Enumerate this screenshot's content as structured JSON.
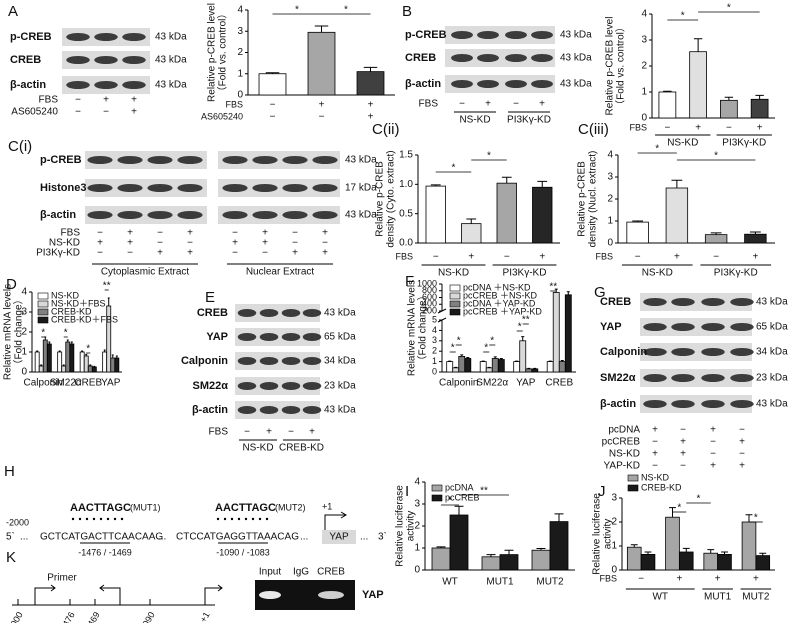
{
  "panel_labels": [
    "A",
    "B",
    "C(i)",
    "C(ii)",
    "C(iii)",
    "D",
    "E",
    "F",
    "G",
    "H",
    "I",
    "J",
    "K"
  ],
  "blots": [
    {
      "rows": [
        {
          "label": "p-CREB",
          "size": "43 kDa"
        },
        {
          "label": "CREB",
          "size": "43 kDa"
        },
        {
          "label": "β-actin",
          "size": "43 kDa"
        }
      ],
      "conditions": [
        {
          "label": "FBS",
          "values": [
            "−",
            "+",
            "+"
          ]
        },
        {
          "label": "AS605240",
          "values": [
            "−",
            "−",
            "+"
          ]
        }
      ],
      "groups": []
    },
    {
      "rows": [
        {
          "label": "p-CREB",
          "size": "43 kDa"
        },
        {
          "label": "CREB",
          "size": "43 kDa"
        },
        {
          "label": "β-actin",
          "size": "43 kDa"
        }
      ],
      "conditions": [
        {
          "label": "FBS",
          "values": [
            "−",
            "+",
            "−",
            "+"
          ]
        }
      ],
      "groups": [
        "NS-KD",
        "PI3Kγ-KD"
      ]
    },
    {
      "rows": [
        {
          "label": "p-CREB",
          "size": "43 kDa"
        },
        {
          "label": "Histone3",
          "size": "17 kDa"
        },
        {
          "label": "β-actin",
          "size": "43 kDa"
        }
      ],
      "conditions": [
        {
          "label": "FBS",
          "values": [
            "−",
            "+",
            "−",
            "+",
            "−",
            "+",
            "−",
            "+"
          ]
        },
        {
          "label": "NS-KD",
          "values": [
            "+",
            "+",
            "−",
            "−",
            "+",
            "+",
            "−",
            "−"
          ]
        },
        {
          "label": "PI3Kγ-KD",
          "values": [
            "−",
            "−",
            "+",
            "+",
            "−",
            "−",
            "+",
            "+"
          ]
        }
      ],
      "groups": [
        "Cytoplasmic  Extract",
        "Nuclear  Extract"
      ]
    },
    {
      "rows": [
        {
          "label": "CREB",
          "size": "43 kDa"
        },
        {
          "label": "YAP",
          "size": "65 kDa"
        },
        {
          "label": "Calponin",
          "size": "34 kDa"
        },
        {
          "label": "SM22α",
          "size": "23 kDa"
        },
        {
          "label": "β-actin",
          "size": "43 kDa"
        }
      ],
      "conditions": [
        {
          "label": "FBS",
          "values": [
            "−",
            "+",
            "−",
            "+"
          ]
        }
      ],
      "groups": [
        "NS-KD",
        "CREB-KD"
      ]
    },
    {
      "rows": [
        {
          "label": "CREB",
          "size": "43 kDa"
        },
        {
          "label": "YAP",
          "size": "65 kDa"
        },
        {
          "label": "Calponin",
          "size": "34 kDa"
        },
        {
          "label": "SM22α",
          "size": "23 kDa"
        },
        {
          "label": "β-actin",
          "size": "43 kDa"
        }
      ],
      "conditions": [
        {
          "label": "pcDNA",
          "values": [
            "+",
            "−",
            "+",
            "−"
          ]
        },
        {
          "label": "pcCREB",
          "values": [
            "−",
            "+",
            "−",
            "+"
          ]
        },
        {
          "label": "NS-KD",
          "values": [
            "+",
            "+",
            "−",
            "−"
          ]
        },
        {
          "label": "YAP-KD",
          "values": [
            "−",
            "−",
            "+",
            "+"
          ]
        }
      ],
      "groups": []
    }
  ],
  "promoter": {
    "start": "-2000",
    "ends": [
      "5`",
      "3`"
    ],
    "gap": "...",
    "seq1": "GCTCATGACTTCAACAAG",
    "seq2": "CTCCATGAGGTTAAACAG",
    "gene": "YAP",
    "mut1_seq": "AACTTAGC",
    "mut1": "(MUT1)",
    "mut2_seq": "AACTTAGC",
    "mut2": "(MUT2)",
    "pos1": "-1476 / -1469",
    "pos2": "-1090 / -1083",
    "tss": "+1"
  },
  "chip": {
    "primer": "Primer",
    "positions": [
      "-2000",
      "-1476",
      "-1469",
      "-1090",
      "+1"
    ],
    "lanes": [
      "Input",
      "IgG",
      "CREB"
    ],
    "target": "YAP"
  },
  "chart_data": [
    {
      "type": "bar",
      "ylabel": [
        "Relative p-CREB level",
        "（Fold vs. control）"
      ],
      "values": [
        1.0,
        2.95,
        1.1
      ],
      "errors": [
        0.05,
        0.3,
        0.2
      ],
      "colors": [
        "#ffffff",
        "#a6a6a6",
        "#404040"
      ],
      "ylim": [
        0,
        4
      ],
      "yticks": [
        0,
        1,
        2,
        3,
        4
      ],
      "xrows": [
        {
          "label": "FBS",
          "values": [
            "−",
            "+",
            "+"
          ]
        },
        {
          "label": "AS605240",
          "values": [
            "−",
            "−",
            "+"
          ]
        }
      ],
      "annotations": [
        "*",
        "*"
      ]
    },
    {
      "type": "bar",
      "ylabel": [
        "Relative p-CREB level",
        "（Fold vs. control）"
      ],
      "values": [
        1.0,
        2.55,
        0.68,
        0.72
      ],
      "errors": [
        0.03,
        0.5,
        0.12,
        0.15
      ],
      "colors": [
        "#ffffff",
        "#e0e0e0",
        "#a6a6a6",
        "#404040"
      ],
      "ylim": [
        0,
        4
      ],
      "yticks": [
        0,
        1,
        2,
        3,
        4
      ],
      "xrows": [
        {
          "label": "FBS",
          "values": [
            "−",
            "+",
            "−",
            "+"
          ]
        }
      ],
      "groups": [
        "NS-KD",
        "PI3Kγ-KD"
      ],
      "annotations": [
        "*",
        "*"
      ]
    },
    {
      "type": "bar",
      "ylabel": [
        "Relative p-CREB",
        "density (Cyto. extract)"
      ],
      "values": [
        0.97,
        0.33,
        1.02,
        0.95
      ],
      "errors": [
        0.02,
        0.08,
        0.1,
        0.1
      ],
      "colors": [
        "#ffffff",
        "#e0e0e0",
        "#a6a6a6",
        "#262626"
      ],
      "ylim": [
        0,
        1.5
      ],
      "yticks": [
        {
          "value": 0,
          "label": "0.0"
        },
        0.5,
        {
          "value": 1,
          "label": "1.0"
        },
        1.5
      ],
      "xrows": [
        {
          "label": "FBS",
          "values": [
            "−",
            "+",
            "−",
            "+"
          ]
        }
      ],
      "groups": [
        "NS-KD",
        "PI3Kγ-KD"
      ],
      "annotations": [
        "*",
        "*"
      ]
    },
    {
      "type": "bar",
      "ylabel": [
        "Relative p-CREB",
        "density (Nucl. extract)"
      ],
      "values": [
        0.95,
        2.5,
        0.38,
        0.4
      ],
      "errors": [
        0.05,
        0.35,
        0.08,
        0.1
      ],
      "colors": [
        "#ffffff",
        "#e0e0e0",
        "#a6a6a6",
        "#262626"
      ],
      "ylim": [
        0,
        4
      ],
      "yticks": [
        0,
        1,
        2,
        3,
        4
      ],
      "xrows": [
        {
          "label": "FBS",
          "values": [
            "−",
            "+",
            "−",
            "+"
          ]
        }
      ],
      "groups": [
        "NS-KD",
        "PI3Kγ-KD"
      ],
      "annotations": [
        "*",
        "*"
      ]
    },
    {
      "type": "bar",
      "ylabel": [
        "Relative mRNA levels",
        "（Fold change）"
      ],
      "categories": [
        "Calponin",
        "SM22α",
        "CREB",
        "YAP"
      ],
      "ylim": [
        0,
        4
      ],
      "yticks": [
        0,
        1,
        2,
        3,
        4
      ],
      "series": [
        {
          "name": "NS-KD",
          "color": "#ffffff",
          "values": [
            1.0,
            1.0,
            1.0,
            1.0
          ],
          "errors": [
            0.05,
            0.05,
            0.05,
            0.1
          ]
        },
        {
          "name": "NS-KD＋FBS",
          "color": "#d9d9d9",
          "values": [
            0.3,
            0.3,
            0.8,
            3.3
          ],
          "errors": [
            0.05,
            0.05,
            0.08,
            0.4
          ]
        },
        {
          "name": "CREB-KD",
          "color": "#808080",
          "values": [
            1.6,
            1.5,
            0.3,
            0.7
          ],
          "errors": [
            0.15,
            0.1,
            0.05,
            0.15
          ]
        },
        {
          "name": "CREB-KD＋FBS",
          "color": "#1a1a1a",
          "values": [
            1.4,
            1.4,
            0.25,
            0.7
          ],
          "errors": [
            0.1,
            0.1,
            0.03,
            0.1
          ]
        }
      ],
      "annotations": [
        "*",
        "*",
        "*",
        "**"
      ]
    },
    {
      "type": "bar",
      "ylabel": [
        "Relative mRNA levels",
        "（Fold change）"
      ],
      "categories": [
        "Calponin",
        "SM22α",
        "YAP",
        "CREB"
      ],
      "ylim": [
        0,
        1000
      ],
      "yticks": [
        0,
        1,
        2,
        3,
        4,
        5,
        200,
        400,
        600,
        800,
        1000
      ],
      "series": [
        {
          "name": "pcDNA ＋NS-KD",
          "color": "#ffffff",
          "values": [
            1.0,
            1.0,
            1.0,
            1.0
          ],
          "errors": [
            0.05,
            0.05,
            0.05,
            0.05
          ]
        },
        {
          "name": "pcCREB ＋NS-KD",
          "color": "#d9d9d9",
          "values": [
            0.4,
            0.4,
            3.0,
            750
          ],
          "errors": [
            0.05,
            0.05,
            0.4,
            100
          ]
        },
        {
          "name": "pcDNA ＋YAP-KD",
          "color": "#808080",
          "values": [
            1.5,
            1.3,
            0.3,
            1.0
          ],
          "errors": [
            0.15,
            0.15,
            0.05,
            0.1
          ]
        },
        {
          "name": "pcCREB ＋YAP-KD",
          "color": "#1a1a1a",
          "values": [
            1.3,
            1.2,
            0.3,
            680
          ],
          "errors": [
            0.1,
            0.1,
            0.05,
            90
          ]
        }
      ],
      "annotations": [
        "*",
        "*",
        "*",
        "*",
        "*",
        "**",
        "**"
      ]
    },
    {
      "type": "bar",
      "ylabel": [
        "Relative luciferase",
        "activity"
      ],
      "categories": [
        "WT",
        "MUT1",
        "MUT2"
      ],
      "ylim": [
        0,
        4
      ],
      "yticks": [
        0,
        1,
        2,
        3,
        4
      ],
      "series": [
        {
          "name": "pcDNA",
          "color": "#a6a6a6",
          "values": [
            1.0,
            0.6,
            0.9
          ],
          "errors": [
            0.05,
            0.1,
            0.08
          ]
        },
        {
          "name": "pcCREB",
          "color": "#1a1a1a",
          "values": [
            2.5,
            0.7,
            2.2
          ],
          "errors": [
            0.4,
            0.2,
            0.35
          ]
        }
      ],
      "annotations": [
        "*",
        "**"
      ]
    },
    {
      "type": "bar",
      "ylabel": [
        "Relative luciferase",
        "activity"
      ],
      "ylim": [
        0,
        3
      ],
      "yticks": [
        0,
        1,
        2,
        3
      ],
      "series": [
        {
          "name": "NS-KD",
          "color": "#a6a6a6",
          "values": [
            0.95,
            2.2,
            0.7,
            2.0
          ],
          "errors": [
            0.1,
            0.4,
            0.15,
            0.3
          ]
        },
        {
          "name": "CREB-KD",
          "color": "#1a1a1a",
          "values": [
            0.65,
            0.75,
            0.65,
            0.6
          ],
          "errors": [
            0.1,
            0.15,
            0.1,
            0.1
          ]
        }
      ],
      "xrows": [
        {
          "label": "FBS",
          "values": [
            "−",
            "+",
            "+",
            "+"
          ]
        }
      ],
      "groups": [
        "WT",
        "MUT1",
        "MUT2"
      ],
      "annotations": [
        "*",
        "*",
        "*"
      ]
    }
  ]
}
